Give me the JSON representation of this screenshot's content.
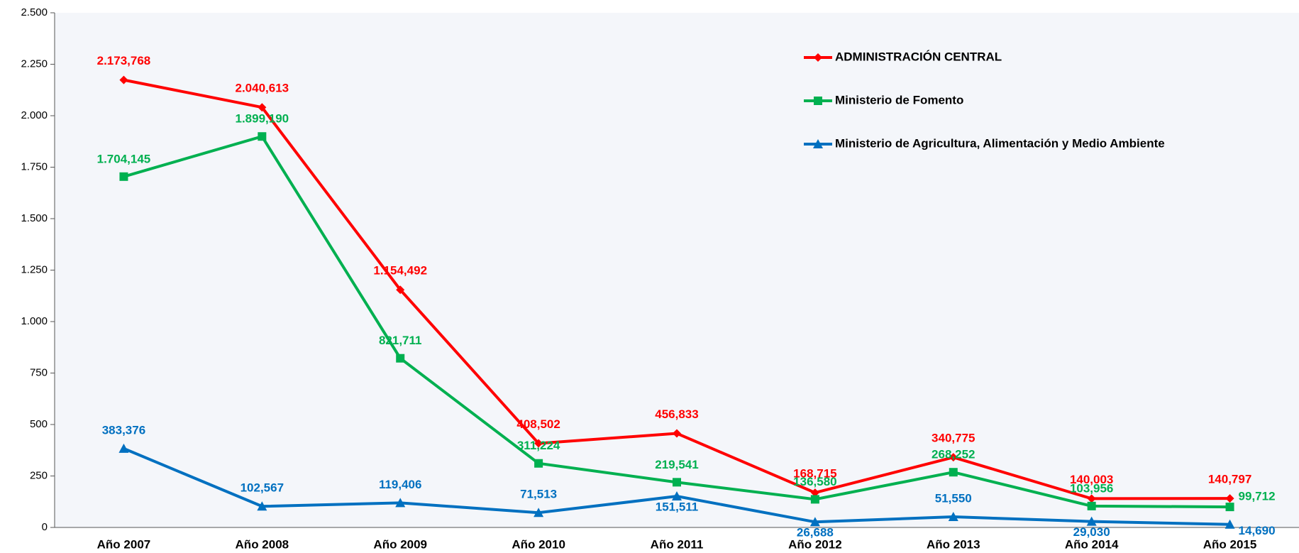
{
  "chart_data": {
    "type": "line",
    "categories": [
      "Año 2007",
      "Año 2008",
      "Año 2009",
      "Año 2010",
      "Año 2011",
      "Año 2012",
      "Año 2013",
      "Año 2014",
      "Año 2015"
    ],
    "ylim": [
      0,
      2500
    ],
    "yticks": [
      0,
      250,
      500,
      750,
      {
        "value": 1000,
        "label": "1.000"
      },
      {
        "value": 1250,
        "label": "1.250"
      },
      {
        "value": 1500,
        "label": "1.500"
      },
      {
        "value": 1750,
        "label": "1.750"
      },
      {
        "value": 2000,
        "label": "2.000"
      },
      {
        "value": 2250,
        "label": "2.250"
      },
      {
        "value": 2500,
        "label": "2.500"
      }
    ],
    "legend": "upper right",
    "series": [
      {
        "name": "ADMINISTRACIÓN CENTRAL",
        "color": "#ff0000",
        "marker": "diamond",
        "values": [
          2173.768,
          2040.613,
          1154.492,
          408.502,
          456.833,
          168.715,
          340.775,
          140.003,
          140.797
        ],
        "value_labels": [
          "2.173,768",
          "2.040,613",
          "1.154,492",
          "408,502",
          "456,833",
          "168,715",
          "340,775",
          "140,003",
          "140,797"
        ]
      },
      {
        "name": "Ministerio de Fomento",
        "color": "#00b050",
        "marker": "square",
        "values": [
          1704.145,
          1899.19,
          821.711,
          311.224,
          219.541,
          136.58,
          268.252,
          103.956,
          99.712
        ],
        "value_labels": [
          "1.704,145",
          "1.899,190",
          "821,711",
          "311,224",
          "219,541",
          "136,580",
          "268,252",
          "103,956",
          "99,712"
        ]
      },
      {
        "name": "Ministerio de Agricultura, Alimentación y Medio Ambiente",
        "color": "#0070c0",
        "marker": "triangle",
        "values": [
          383.376,
          102.567,
          119.406,
          71.513,
          151.511,
          26.688,
          51.55,
          29.03,
          14.69
        ],
        "value_labels": [
          "383,376",
          "102,567",
          "119,406",
          "71,513",
          "151,511",
          "26,688",
          "51,550",
          "29,030",
          "14,690"
        ]
      }
    ]
  }
}
